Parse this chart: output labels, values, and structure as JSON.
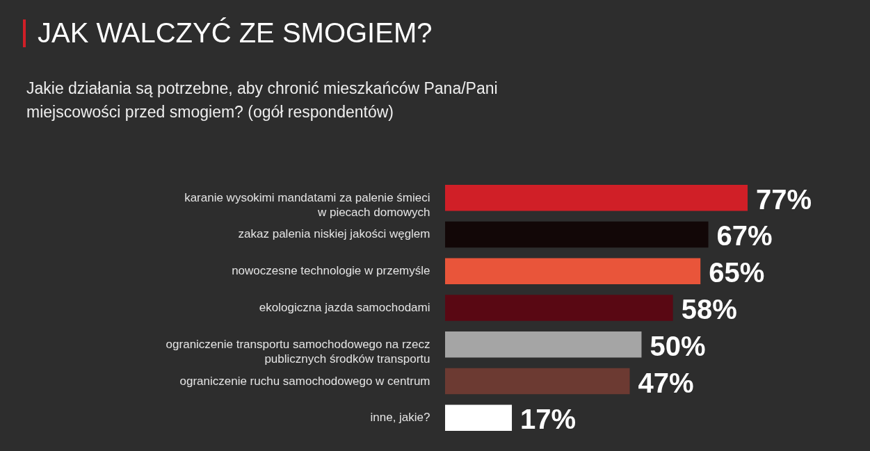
{
  "chart_data": {
    "type": "bar",
    "orientation": "horizontal",
    "title": "JAK WALCZYĆ ZE SMOGIEM?",
    "subtitle": "Jakie działania są potrzebne, aby chronić mieszkańców Pana/Pani miejscowości przed smogiem? (ogół respondentów)",
    "categories": [
      "karanie wysokimi mandatami za palenie śmieci w piecach domowych",
      "zakaz palenia niskiej jakości węglem",
      "nowoczesne technologie w przemyśle",
      "ekologiczna jazda samochodami",
      "ograniczenie transportu samochodowego na rzecz publicznych środków transportu",
      "ograniczenie ruchu samochodowego w centrum",
      "inne, jakie?"
    ],
    "values": [
      77,
      67,
      65,
      58,
      50,
      47,
      17
    ],
    "colors": [
      "#d01f27",
      "#120707",
      "#e9553a",
      "#590813",
      "#a5a5a5",
      "#6c3a32",
      "#ffffff"
    ],
    "value_labels": [
      "77%",
      "67%",
      "65%",
      "58%",
      "50%",
      "47%",
      "17%"
    ],
    "grid": false
  }
}
